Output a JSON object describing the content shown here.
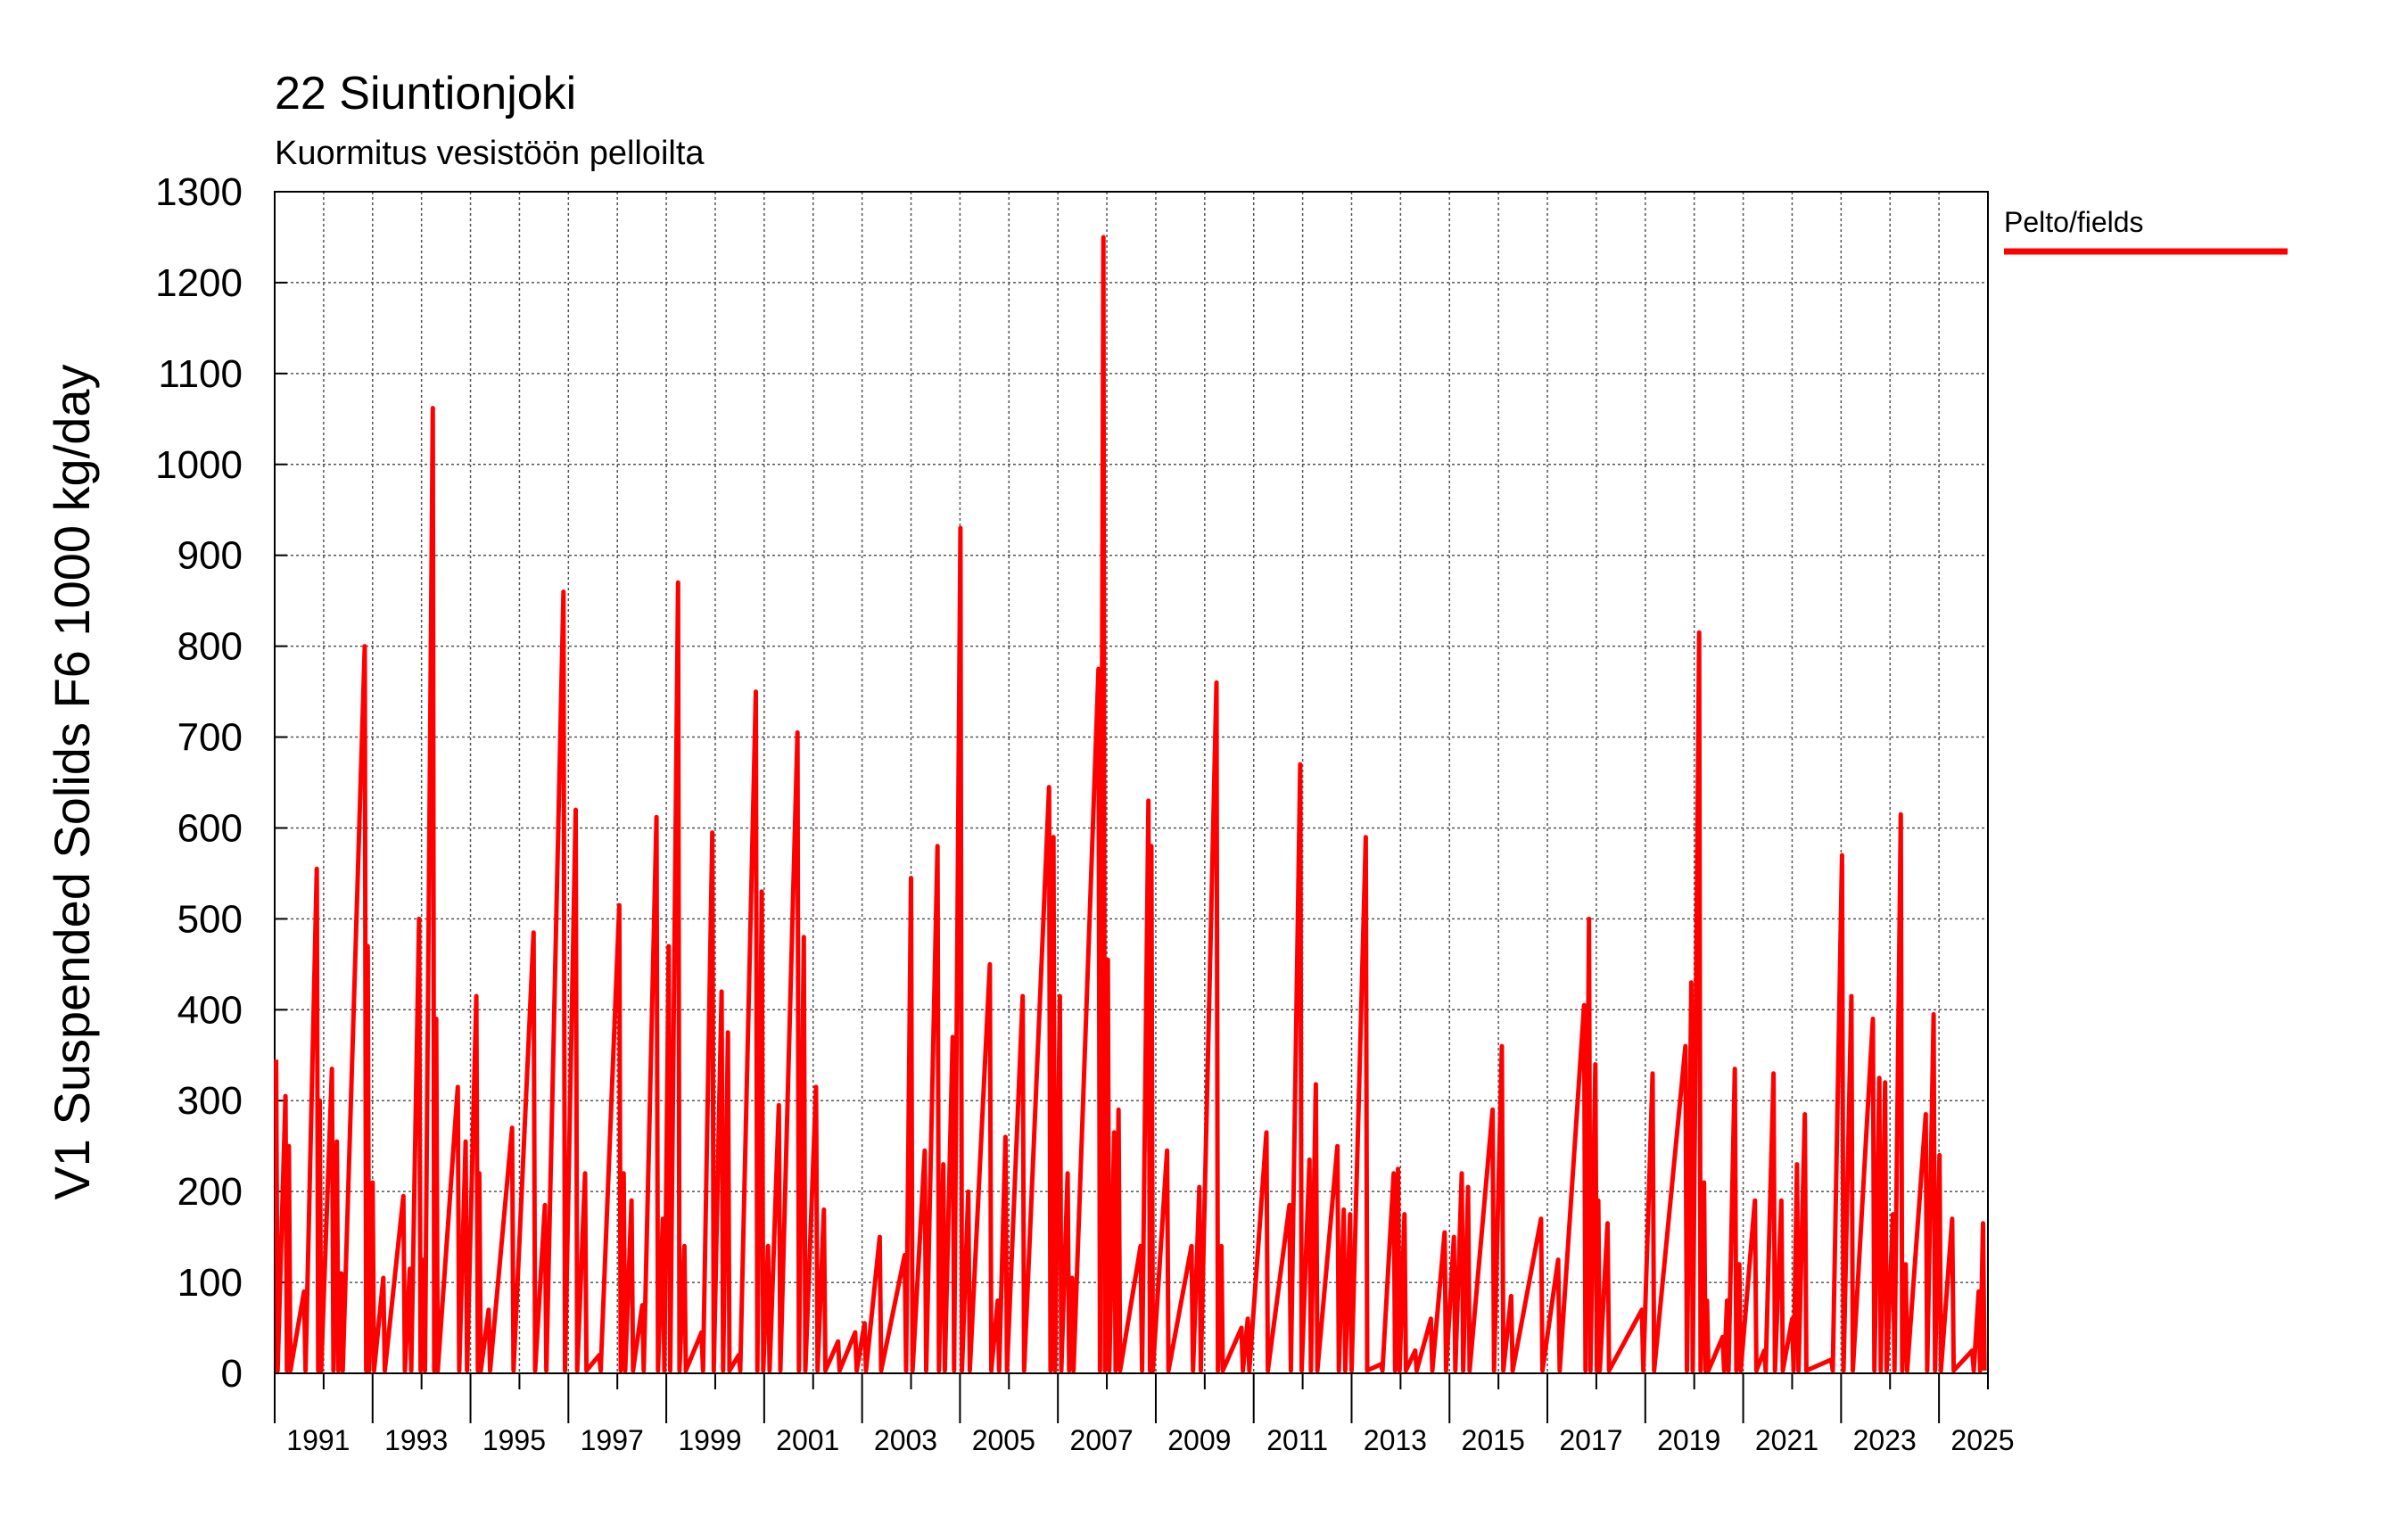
{
  "chart_data": {
    "type": "line",
    "title": "22 Siuntionjoki",
    "subtitle": "Kuormitus vesistöön pelloilta",
    "y_label": "V1 Suspended Solids F6 1000 kg/day",
    "legend_position": "right",
    "grid": true,
    "xlim": [
      1990,
      2025
    ],
    "xticks": [
      1991,
      1993,
      1995,
      1997,
      1999,
      2001,
      2003,
      2005,
      2007,
      2009,
      2011,
      2013,
      2015,
      2017,
      2019,
      2021,
      2023,
      2025
    ],
    "x_minor_ticks": [
      1990,
      1991,
      1992,
      1993,
      1994,
      1995,
      1996,
      1997,
      1998,
      1999,
      2000,
      2001,
      2002,
      2003,
      2004,
      2005,
      2006,
      2007,
      2008,
      2009,
      2010,
      2011,
      2012,
      2013,
      2014,
      2015,
      2016,
      2017,
      2018,
      2019,
      2020,
      2021,
      2022,
      2023,
      2024,
      2025
    ],
    "ylim": [
      0,
      1300
    ],
    "yticks": [
      0,
      100,
      200,
      300,
      400,
      500,
      600,
      700,
      800,
      900,
      1000,
      1100,
      1200,
      1300
    ],
    "x": [
      1990.03,
      1990.06,
      1990.22,
      1990.25,
      1990.29,
      1990.32,
      1990.6,
      1990.63,
      1990.86,
      1990.89,
      1990.92,
      1990.95,
      1991.17,
      1991.2,
      1991.27,
      1991.3,
      1991.36,
      1991.39,
      1991.84,
      1991.87,
      1991.9,
      1991.93,
      1992,
      1992.03,
      1992.22,
      1992.25,
      1992.63,
      1992.66,
      1992.76,
      1992.79,
      1992.95,
      1992.98,
      1993.04,
      1993.07,
      1993.23,
      1993.26,
      1993.3,
      1993.33,
      1993.74,
      1993.77,
      1993.9,
      1993.93,
      1994.12,
      1994.15,
      1994.18,
      1994.21,
      1994.37,
      1994.4,
      1994.85,
      1994.88,
      1995.29,
      1995.32,
      1995.52,
      1995.55,
      1995.9,
      1995.93,
      1996.15,
      1996.18,
      1996.34,
      1996.37,
      1996.63,
      1996.66,
      1997.04,
      1997.07,
      1997.13,
      1997.16,
      1997.29,
      1997.32,
      1997.51,
      1997.54,
      1997.8,
      1997.83,
      1997.93,
      1997.96,
      1998.05,
      1998.08,
      1998.24,
      1998.27,
      1998.37,
      1998.4,
      1998.72,
      1998.75,
      1998.94,
      1998.97,
      1999.13,
      1999.16,
      1999.26,
      1999.29,
      1999.48,
      1999.51,
      1999.83,
      1999.86,
      1999.95,
      1999.98,
      2000.08,
      2000.11,
      2000.3,
      2000.33,
      2000.68,
      2000.71,
      2000.81,
      2000.84,
      2001.06,
      2001.09,
      2001.22,
      2001.25,
      2001.51,
      2001.54,
      2001.86,
      2001.89,
      2002.05,
      2002.08,
      2002.36,
      2002.39,
      2002.87,
      2002.9,
      2003,
      2003.03,
      2003.28,
      2003.31,
      2003.54,
      2003.57,
      2003.66,
      2003.69,
      2003.85,
      2003.88,
      2004.01,
      2004.04,
      2004.17,
      2004.2,
      2004.61,
      2004.64,
      2004.77,
      2004.8,
      2004.93,
      2004.96,
      2005.28,
      2005.31,
      2005.82,
      2005.85,
      2005.91,
      2005.94,
      2006.04,
      2006.07,
      2006.2,
      2006.23,
      2006.29,
      2006.32,
      2006.83,
      2006.86,
      2006.93,
      2006.96,
      2007.02,
      2007.05,
      2007.15,
      2007.18,
      2007.24,
      2007.27,
      2007.69,
      2007.72,
      2007.85,
      2007.88,
      2007.91,
      2007.94,
      2008.23,
      2008.26,
      2008.73,
      2008.76,
      2008.89,
      2008.92,
      2009.24,
      2009.27,
      2009.34,
      2009.37,
      2009.75,
      2009.78,
      2009.88,
      2009.91,
      2010.26,
      2010.29,
      2010.73,
      2010.76,
      2010.95,
      2010.98,
      2011.14,
      2011.17,
      2011.27,
      2011.3,
      2011.71,
      2011.74,
      2011.84,
      2011.87,
      2011.97,
      2012,
      2012.29,
      2012.32,
      2012.6,
      2012.63,
      2012.86,
      2012.89,
      2012.95,
      2012.98,
      2013.08,
      2013.11,
      2013.3,
      2013.33,
      2013.62,
      2013.65,
      2013.9,
      2013.93,
      2014.09,
      2014.12,
      2014.25,
      2014.28,
      2014.38,
      2014.41,
      2014.88,
      2014.91,
      2015.07,
      2015.1,
      2015.26,
      2015.29,
      2015.87,
      2015.9,
      2016.22,
      2016.25,
      2016.75,
      2016.78,
      2016.85,
      2016.88,
      2016.98,
      2017.01,
      2017.04,
      2017.07,
      2017.23,
      2017.26,
      2017.93,
      2017.96,
      2018.15,
      2018.18,
      2018.82,
      2018.85,
      2018.94,
      2018.97,
      2019.1,
      2019.13,
      2019.2,
      2019.23,
      2019.26,
      2019.29,
      2019.58,
      2019.61,
      2019.67,
      2019.7,
      2019.83,
      2019.86,
      2019.92,
      2019.95,
      2020.24,
      2020.27,
      2020.43,
      2020.46,
      2020.62,
      2020.65,
      2020.78,
      2020.81,
      2021,
      2021.03,
      2021.1,
      2021.13,
      2021.26,
      2021.29,
      2021.8,
      2021.83,
      2022.02,
      2022.05,
      2022.21,
      2022.24,
      2022.65,
      2022.68,
      2022.78,
      2022.81,
      2022.9,
      2022.93,
      2023.06,
      2023.09,
      2023.22,
      2023.25,
      2023.32,
      2023.35,
      2023.73,
      2023.76,
      2023.89,
      2023.92,
      2024.01,
      2024.04,
      2024.27,
      2024.3,
      2024.68,
      2024.71,
      2024.81,
      2024.84,
      2024.9,
      2024.93
    ],
    "series": [
      {
        "name": "Pelto/fields",
        "color": "#ff0000",
        "values": [
          345,
          3,
          305,
          3,
          250,
          3,
          90,
          3,
          555,
          3,
          300,
          3,
          335,
          3,
          255,
          3,
          110,
          3,
          800,
          3,
          470,
          3,
          210,
          3,
          105,
          3,
          195,
          3,
          115,
          3,
          500,
          3,
          125,
          3,
          1062,
          3,
          390,
          3,
          315,
          3,
          255,
          3,
          415,
          3,
          220,
          3,
          70,
          3,
          270,
          3,
          485,
          3,
          185,
          3,
          860,
          3,
          620,
          3,
          220,
          3,
          20,
          3,
          515,
          3,
          220,
          3,
          190,
          3,
          75,
          3,
          612,
          3,
          170,
          3,
          470,
          3,
          870,
          3,
          140,
          3,
          45,
          3,
          595,
          3,
          420,
          3,
          375,
          3,
          20,
          3,
          750,
          3,
          530,
          3,
          140,
          3,
          295,
          3,
          705,
          3,
          480,
          3,
          315,
          3,
          180,
          3,
          35,
          3,
          45,
          3,
          55,
          3,
          150,
          3,
          130,
          3,
          545,
          3,
          245,
          3,
          580,
          3,
          230,
          3,
          370,
          3,
          930,
          3,
          200,
          3,
          450,
          3,
          80,
          3,
          260,
          3,
          415,
          3,
          645,
          3,
          590,
          3,
          415,
          3,
          220,
          3,
          105,
          3,
          775,
          3,
          1250,
          3,
          455,
          3,
          265,
          3,
          290,
          3,
          140,
          3,
          630,
          3,
          580,
          3,
          245,
          3,
          140,
          3,
          205,
          3,
          760,
          3,
          140,
          3,
          50,
          3,
          60,
          3,
          265,
          3,
          185,
          3,
          670,
          3,
          235,
          3,
          318,
          3,
          250,
          3,
          180,
          3,
          175,
          3,
          590,
          3,
          10,
          3,
          220,
          3,
          225,
          3,
          175,
          3,
          25,
          3,
          60,
          3,
          155,
          3,
          150,
          3,
          220,
          3,
          205,
          3,
          290,
          3,
          360,
          3,
          85,
          3,
          170,
          3,
          125,
          3,
          405,
          3,
          500,
          3,
          340,
          3,
          190,
          3,
          165,
          3,
          70,
          3,
          330,
          3,
          360,
          3,
          430,
          3,
          815,
          3,
          210,
          3,
          80,
          3,
          40,
          3,
          80,
          3,
          335,
          3,
          120,
          3,
          190,
          3,
          25,
          3,
          330,
          3,
          190,
          3,
          60,
          3,
          230,
          3,
          285,
          3,
          15,
          3,
          570,
          3,
          415,
          3,
          390,
          3,
          325,
          3,
          320,
          3,
          175,
          3,
          615,
          3,
          120,
          3,
          285,
          3,
          395,
          3,
          240,
          3,
          170,
          3,
          25,
          3,
          90,
          3,
          165,
          3
        ]
      }
    ]
  }
}
